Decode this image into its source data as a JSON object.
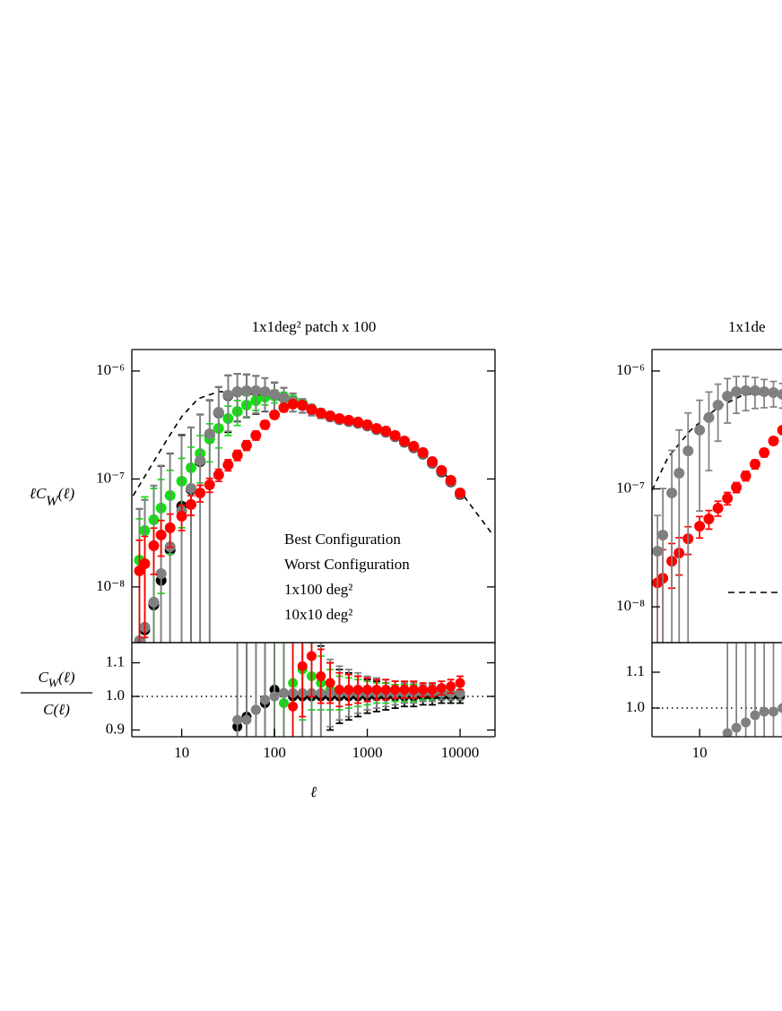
{
  "chart_data": [
    {
      "type": "scatter",
      "title": "1x1deg² patch  x 100",
      "xlog": true,
      "ylog": true,
      "xlim": [
        2.9,
        23800
      ],
      "ylim": [
        3.05e-09,
        1.58e-06
      ],
      "yticks": [
        {
          "value": 1e-06,
          "label": "10⁻⁶"
        },
        {
          "value": 1e-07,
          "label": "10⁻⁷"
        },
        {
          "value": 1e-08,
          "label": "10⁻⁸"
        }
      ],
      "ylabel": [
        "ℓC",
        "W",
        "(ℓ)"
      ],
      "legend": "lower right",
      "x": [
        3.5,
        4,
        5,
        6,
        7.5,
        10,
        12.6,
        15.8,
        20,
        25,
        31.6,
        39.8,
        50,
        63,
        79,
        100,
        126,
        158,
        200,
        251,
        316,
        398,
        501,
        631,
        794,
        1000,
        1259,
        1585,
        1995,
        2512,
        3162,
        3981,
        5012,
        6310,
        7943,
        10000
      ],
      "series": [
        {
          "name": "Best Configuration",
          "color": "#ff0000",
          "values": [
            1.41e-08,
            1.64e-08,
            2.41e-08,
            3.03e-08,
            3.53e-08,
            4.53e-08,
            5.8e-08,
            7.43e-08,
            8.83e-08,
            1.09e-07,
            1.35e-07,
            1.66e-07,
            2.05e-07,
            2.53e-07,
            3.18e-07,
            3.92e-07,
            4.57e-07,
            4.93e-07,
            4.83e-07,
            4.4e-07,
            4.07e-07,
            3.85e-07,
            3.63e-07,
            3.5e-07,
            3.37e-07,
            3.18e-07,
            2.94e-07,
            2.78e-07,
            2.53e-07,
            2.25e-07,
            2.01e-07,
            1.76e-07,
            1.45e-07,
            1.2e-07,
            9.72e-08,
            7.43e-08
          ],
          "errors": [
            1.3e-08,
            1.3e-08,
            1.1e-08,
            1.1e-08,
            1.2e-08,
            1.2e-08,
            1.2e-08,
            1.3e-08,
            1.3e-08,
            1.4e-08,
            1.6e-08,
            1.8e-08,
            2.1e-08,
            2.4e-08,
            2.8e-08,
            3e-08,
            3e-08,
            3e-08,
            2.5e-08,
            2e-08,
            1.6e-08,
            1.5e-08,
            1.4e-08,
            1.3e-08,
            1.2e-08,
            1.1e-08,
            1e-08,
            1e-08,
            9e-09,
            9e-09,
            8e-09,
            7e-09,
            6e-09,
            5e-09,
            4e-09,
            4e-09
          ]
        },
        {
          "name": "Worst Configuration",
          "color": "#808080",
          "values": [
            3.18e-09,
            4.23e-09,
            7.23e-09,
            1.33e-08,
            2.36e-08,
            5.07e-08,
            8.18e-08,
            1.48e-07,
            2.62e-07,
            4.15e-07,
            5.97e-07,
            6.44e-07,
            6.57e-07,
            6.57e-07,
            6.44e-07,
            6.08e-07,
            5.64e-07,
            5.22e-07,
            4.83e-07,
            4.4e-07,
            4.07e-07,
            3.78e-07,
            3.56e-07,
            3.43e-07,
            3.3e-07,
            3.12e-07,
            2.89e-07,
            2.73e-07,
            2.48e-07,
            2.21e-07,
            1.97e-07,
            1.72e-07,
            1.42e-07,
            1.18e-07,
            9.53e-08,
            7.3e-08
          ],
          "errors": [
            5e-08,
            6e-08,
            8e-08,
            1.2e-07,
            1.5e-07,
            2e-07,
            2.2e-07,
            2.5e-07,
            2.8e-07,
            3e-07,
            3.2e-07,
            3e-07,
            2.8e-07,
            2.5e-07,
            2.2e-07,
            1.8e-07,
            1.4e-07,
            1e-07,
            7e-08,
            5e-08,
            4e-08,
            3e-08,
            2.5e-08,
            2e-08,
            1.8e-08,
            1.6e-08,
            1.5e-08,
            1.4e-08,
            1.3e-08,
            1.2e-08,
            1.1e-08,
            1e-08,
            9e-09,
            8e-09,
            7e-09,
            6e-09
          ]
        },
        {
          "name": "1x100 deg²",
          "color": "#11e011",
          "values": [
            1.77e-08,
            3.33e-08,
            4.19e-08,
            5.37e-08,
            7.02e-08,
            9.53e-08,
            1.27e-07,
            1.72e-07,
            2.34e-07,
            2.94e-07,
            3.63e-07,
            4.23e-07,
            4.83e-07,
            5.32e-07,
            5.74e-07,
            5.86e-07,
            5.74e-07,
            5.42e-07,
            5.02e-07,
            4.48e-07,
            4.1e-07,
            3.82e-07,
            3.6e-07,
            3.47e-07,
            3.34e-07,
            3.15e-07,
            2.92e-07,
            2.76e-07,
            2.51e-07,
            2.23e-07,
            1.99e-07,
            1.74e-07,
            1.44e-07,
            1.19e-07,
            9.62e-08,
            7.36e-08
          ],
          "errors": [
            2.5e-08,
            3.5e-08,
            4e-08,
            4.5e-08,
            5e-08,
            6e-08,
            7e-08,
            8e-08,
            9e-08,
            1e-07,
            1.1e-07,
            1.1e-07,
            1.1e-07,
            1e-07,
            9e-08,
            8e-08,
            6e-08,
            5e-08,
            4e-08,
            3e-08,
            2.5e-08,
            2e-08,
            1.8e-08,
            1.6e-08,
            1.5e-08,
            1.4e-08,
            1.3e-08,
            1.2e-08,
            1.1e-08,
            1e-08,
            9e-09,
            8e-09,
            7e-09,
            6e-09,
            5e-09,
            4e-09
          ]
        },
        {
          "name": "10x10 deg²",
          "color": "#000000",
          "values": [
            2.8e-09,
            4e-09,
            6.8e-09,
            1.15e-08,
            2.2e-08,
            5.6e-08,
            8e-08,
            1.45e-07,
            2.55e-07,
            4.1e-07,
            5.9e-07,
            6.4e-07,
            6.5e-07,
            6.5e-07,
            6.4e-07,
            6e-07,
            5.6e-07,
            5.2e-07,
            4.8e-07,
            4.38e-07,
            4.05e-07,
            3.76e-07,
            3.54e-07,
            3.41e-07,
            3.28e-07,
            3.1e-07,
            2.87e-07,
            2.71e-07,
            2.46e-07,
            2.19e-07,
            1.95e-07,
            1.7e-07,
            1.4e-07,
            1.16e-07,
            9.4e-08,
            7.2e-08
          ],
          "errors": [
            5e-08,
            6e-08,
            8e-08,
            1.2e-07,
            1.5e-07,
            2e-07,
            2.2e-07,
            2.5e-07,
            2.8e-07,
            3e-07,
            3.2e-07,
            3e-07,
            2.8e-07,
            2.5e-07,
            2.2e-07,
            1.8e-07,
            1.4e-07,
            1e-07,
            7e-08,
            5e-08,
            4e-08,
            3e-08,
            2.5e-08,
            2e-08,
            1.8e-08,
            1.6e-08,
            1.5e-08,
            1.4e-08,
            1.3e-08,
            1.2e-08,
            1.1e-08,
            1e-08,
            9e-09,
            8e-09,
            7e-09,
            6e-09
          ]
        },
        {
          "color": "#000000",
          "dashed": true,
          "x": [
            3,
            5,
            7,
            10,
            15,
            25,
            40,
            63,
            100,
            200,
            500,
            1000,
            2000,
            5000,
            10000,
            23000
          ],
          "values": [
            7.02e-08,
            1.45e-07,
            2.34e-07,
            3.78e-07,
            5.53e-07,
            6.44e-07,
            6.32e-07,
            6.08e-07,
            5.53e-07,
            4.83e-07,
            3.7e-07,
            3.18e-07,
            2.53e-07,
            1.48e-07,
            7.73e-08,
            2.97e-08
          ]
        }
      ]
    },
    {
      "type": "scatter",
      "xlog": true,
      "xlim": [
        2.9,
        23800
      ],
      "ylim": [
        0.88,
        1.16
      ],
      "xticks": [
        10,
        100,
        1000,
        10000
      ],
      "yticks": [
        1.1,
        {
          "value": 1,
          "label": "1.0"
        },
        0.9
      ],
      "xlabel": "ℓ",
      "ylabel": {
        "numerator": [
          "C",
          "W",
          "(ℓ)"
        ],
        "denominator": "C(ℓ)"
      },
      "reference_line": 1,
      "x": [
        39.8,
        50,
        63,
        79,
        100,
        126,
        158,
        200,
        251,
        316,
        398,
        501,
        631,
        794,
        1000,
        1259,
        1585,
        1995,
        2512,
        3162,
        3981,
        5012,
        6310,
        7943,
        10000
      ],
      "series": [
        {
          "color": "#ff0000",
          "values": [
            null,
            null,
            null,
            null,
            null,
            null,
            0.97,
            1.09,
            1.12,
            1.06,
            1.04,
            1.02,
            1.02,
            1.02,
            1.02,
            1.02,
            1.02,
            1.02,
            1.02,
            1.02,
            1.02,
            1.02,
            1.025,
            1.03,
            1.04
          ],
          "errors": [
            null,
            null,
            null,
            null,
            null,
            null,
            0.25,
            0.15,
            0.12,
            0.08,
            0.06,
            0.05,
            0.045,
            0.04,
            0.035,
            0.03,
            0.03,
            0.025,
            0.025,
            0.025,
            0.02,
            0.02,
            0.02,
            0.02,
            0.02
          ]
        },
        {
          "color": "#808080",
          "values": [
            0.93,
            0.93,
            0.96,
            0.99,
            1.0,
            1.01,
            1.01,
            1.01,
            1.01,
            1.01,
            1.01,
            1.01,
            1.01,
            1.01,
            1.01,
            1.01,
            1.01,
            1.01,
            1.01,
            1.01,
            1.01,
            1.01,
            1.01,
            1.01,
            1.01
          ],
          "errors": [
            0.5,
            0.5,
            0.5,
            0.5,
            0.5,
            0.45,
            0.4,
            0.3,
            0.2,
            0.15,
            0.1,
            0.08,
            0.07,
            0.06,
            0.05,
            0.045,
            0.04,
            0.035,
            0.03,
            0.03,
            0.025,
            0.025,
            0.02,
            0.02,
            0.02
          ]
        },
        {
          "color": "#11e011",
          "values": [
            null,
            null,
            null,
            null,
            1.0,
            0.98,
            1.04,
            1.08,
            1.06,
            1.04,
            1.02,
            1.01,
            1.01,
            1.01,
            1.01,
            1.01,
            1.01,
            1.01,
            1.01,
            1.01,
            1.01,
            1.01,
            1.01,
            1.01,
            1.01
          ],
          "errors": [
            null,
            null,
            null,
            null,
            0.4,
            0.3,
            0.2,
            0.15,
            0.1,
            0.08,
            0.06,
            0.05,
            0.045,
            0.04,
            0.035,
            0.03,
            0.03,
            0.025,
            0.025,
            0.025,
            0.02,
            0.02,
            0.02,
            0.02,
            0.02
          ]
        },
        {
          "color": "#000000",
          "values": [
            0.91,
            0.94,
            0.96,
            0.98,
            1.02,
            1.01,
            1.0,
            1.0,
            1.0,
            1.0,
            1.0,
            1.0,
            1.0,
            1.0,
            1.0,
            1.0,
            1.0,
            1.0,
            1.0,
            1.0,
            1.0,
            1.0,
            1.0,
            1.0,
            1.0
          ],
          "errors": [
            0.5,
            0.5,
            0.5,
            0.5,
            0.5,
            0.45,
            0.4,
            0.3,
            0.2,
            0.15,
            0.1,
            0.08,
            0.07,
            0.06,
            0.05,
            0.045,
            0.04,
            0.035,
            0.03,
            0.03,
            0.025,
            0.025,
            0.02,
            0.02,
            0.02
          ]
        }
      ]
    },
    {
      "type": "scatter",
      "title": "1x1de",
      "xlog": true,
      "ylog": true,
      "xlim": [
        3.05,
        26000
      ],
      "ylim": [
        4.97e-09,
        1.52e-06
      ],
      "yticks": [
        {
          "value": 1e-06,
          "label": "10⁻⁶"
        },
        {
          "value": 1e-07,
          "label": "10⁻⁷"
        },
        {
          "value": 1e-08,
          "label": "10⁻⁸"
        }
      ],
      "x": [
        3.5,
        4,
        5,
        6,
        7.5,
        10,
        12.6,
        15.8,
        20,
        25,
        31.6,
        39.8,
        50,
        63,
        79
      ],
      "series": [
        {
          "color": "#808080",
          "values": [
            2.96e-08,
            4.06e-08,
            9.25e-08,
            1.36e-07,
            2.1e-07,
            3.15e-07,
            4.03e-07,
            5.14e-07,
            6.12e-07,
            6.68e-07,
            6.81e-07,
            6.81e-07,
            6.68e-07,
            6.56e-07,
            6.34e-07
          ],
          "errors": [
            3e-08,
            6e-08,
            1.2e-07,
            1.8e-07,
            2.3e-07,
            2.5e-07,
            2.6e-07,
            2.6e-07,
            2.5e-07,
            2.3e-07,
            2.2e-07,
            2e-07,
            1.8e-07,
            1.6e-07,
            1.5e-07
          ]
        },
        {
          "color": "#ff0000",
          "values": [
            1.6e-08,
            1.75e-08,
            2.44e-08,
            2.86e-08,
            3.78e-08,
            4.83e-08,
            5.56e-08,
            6.87e-08,
            8.32e-08,
            1.03e-07,
            1.29e-07,
            1.62e-07,
            2.03e-07,
            2.55e-07,
            3.15e-07
          ],
          "errors": [
            1.3e-08,
            1.3e-08,
            1e-08,
            1e-08,
            1e-08,
            1e-08,
            1e-08,
            1e-08,
            1e-08,
            1e-08,
            1.2e-08,
            1.4e-08,
            1.6e-08,
            1.8e-08,
            2e-08
          ]
        },
        {
          "color": "#000000",
          "dashed": true,
          "x": [
            3.06,
            4.57,
            8,
            15.6,
            30.6,
            79
          ],
          "values": [
            9.75e-08,
            1.86e-07,
            3.15e-07,
            4.88e-07,
            6.34e-07,
            6.4e-07
          ]
        }
      ]
    },
    {
      "type": "scatter",
      "xlog": true,
      "xlim": [
        3.05,
        26000
      ],
      "ylim": [
        0.92,
        1.1825
      ],
      "xticks": [
        10
      ],
      "yticks": [
        1.1,
        {
          "value": 1,
          "label": "1.0"
        }
      ],
      "reference_line": 1,
      "x": [
        20,
        25,
        31.6,
        39.8,
        50,
        63,
        79
      ],
      "series": [
        {
          "color": "#808080",
          "values": [
            0.93,
            0.945,
            0.96,
            0.98,
            0.99,
            0.99,
            1.0
          ],
          "errors": [
            0.5,
            0.5,
            0.5,
            0.5,
            0.5,
            0.5,
            0.5
          ]
        }
      ]
    }
  ]
}
